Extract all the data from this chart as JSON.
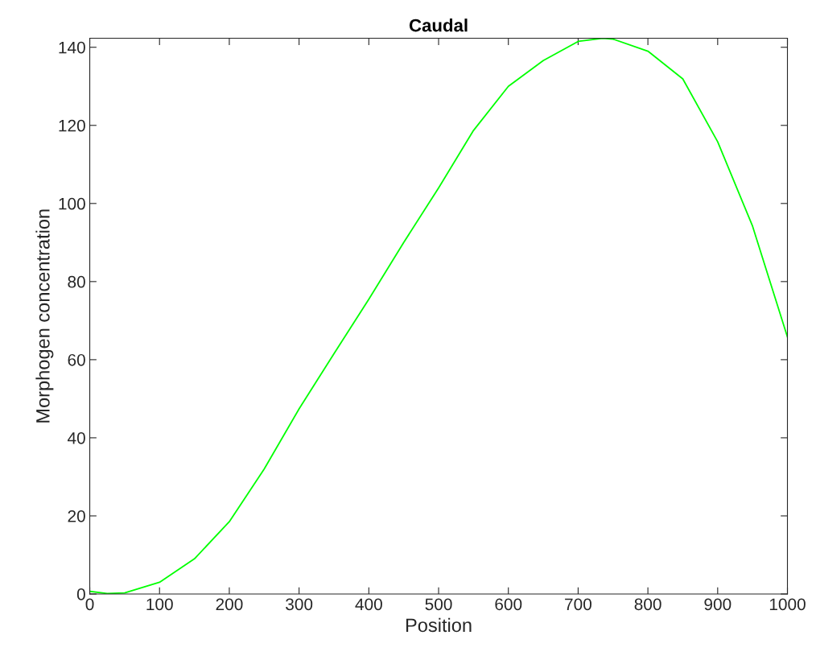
{
  "chart_data": {
    "type": "line",
    "title": "Caudal",
    "xlabel": "Position",
    "ylabel": "Morphogen concentration",
    "x": [
      0,
      25,
      50,
      100,
      150,
      200,
      250,
      300,
      350,
      400,
      450,
      500,
      550,
      600,
      650,
      700,
      735,
      750,
      800,
      850,
      900,
      950,
      1000
    ],
    "series": [
      {
        "color": "#00ff00",
        "values": [
          0.7,
          0.1,
          0.3,
          3,
          9,
          18.5,
          32,
          47.4,
          61.5,
          75.5,
          90,
          104,
          118.7,
          130,
          136.6,
          141.5,
          142.3,
          142.1,
          139,
          131.9,
          115.8,
          94.2,
          65.8
        ]
      }
    ],
    "xlim": [
      0,
      1000
    ],
    "ylim": [
      0,
      142.3
    ],
    "xticks": [
      0,
      100,
      200,
      300,
      400,
      500,
      600,
      700,
      800,
      900,
      1000
    ],
    "yticks": [
      0,
      20,
      40,
      60,
      80,
      100,
      120,
      140
    ],
    "grid": false,
    "legend": false,
    "marker": "none",
    "line_style": "solid"
  }
}
